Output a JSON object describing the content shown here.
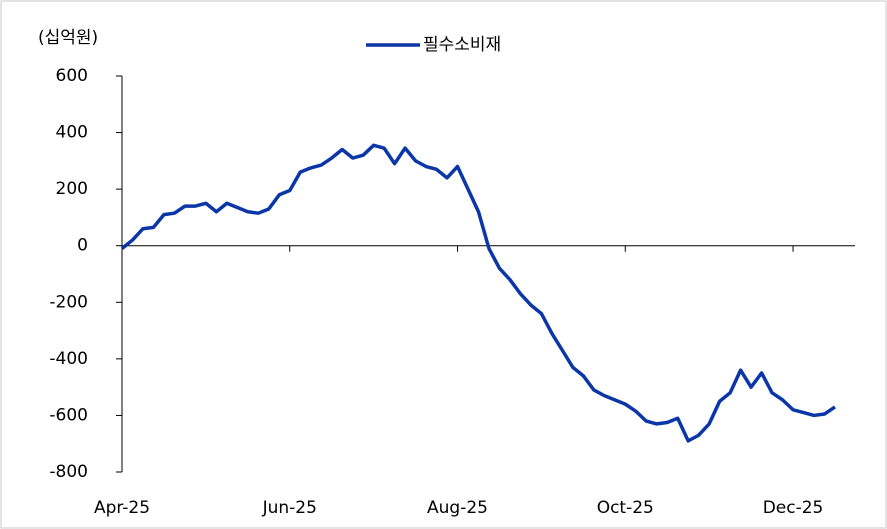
{
  "chart_data": {
    "type": "line",
    "y_axis_label": "(십억원)",
    "categories": [
      "Apr-25",
      null,
      null,
      null,
      null,
      null,
      null,
      null,
      null,
      null,
      null,
      null,
      null,
      null,
      null,
      null,
      "Jun-25",
      null,
      null,
      null,
      null,
      null,
      null,
      null,
      null,
      null,
      null,
      null,
      null,
      null,
      null,
      null,
      "Aug-25",
      null,
      null,
      null,
      null,
      null,
      null,
      null,
      null,
      null,
      null,
      null,
      null,
      null,
      null,
      null,
      "Oct-25",
      null,
      null,
      null,
      null,
      null,
      null,
      null,
      null,
      null,
      null,
      null,
      null,
      null,
      null,
      null,
      "Dec-25",
      null,
      null,
      null,
      null
    ],
    "series": [
      {
        "name": "필수소비재",
        "color": "#0b36a8",
        "values": [
          -10,
          20,
          60,
          65,
          110,
          115,
          140,
          140,
          150,
          120,
          150,
          135,
          120,
          115,
          130,
          180,
          195,
          260,
          275,
          285,
          310,
          340,
          310,
          320,
          355,
          345,
          290,
          345,
          300,
          280,
          270,
          240,
          280,
          200,
          120,
          -10,
          -80,
          -120,
          -170,
          -210,
          -240,
          -310,
          -370,
          -430,
          -460,
          -510,
          -530,
          -545,
          -560,
          -585,
          -620,
          -630,
          -625,
          -610,
          -690,
          -670,
          -630,
          -550,
          -520,
          -440,
          -500,
          -450,
          -520,
          -545,
          -580,
          -590,
          -600,
          -595,
          -570
        ]
      }
    ],
    "ylim": [
      -800,
      600
    ],
    "yticks": [
      -800,
      -600,
      -400,
      -200,
      0,
      200,
      400,
      600
    ],
    "legend": "top"
  }
}
